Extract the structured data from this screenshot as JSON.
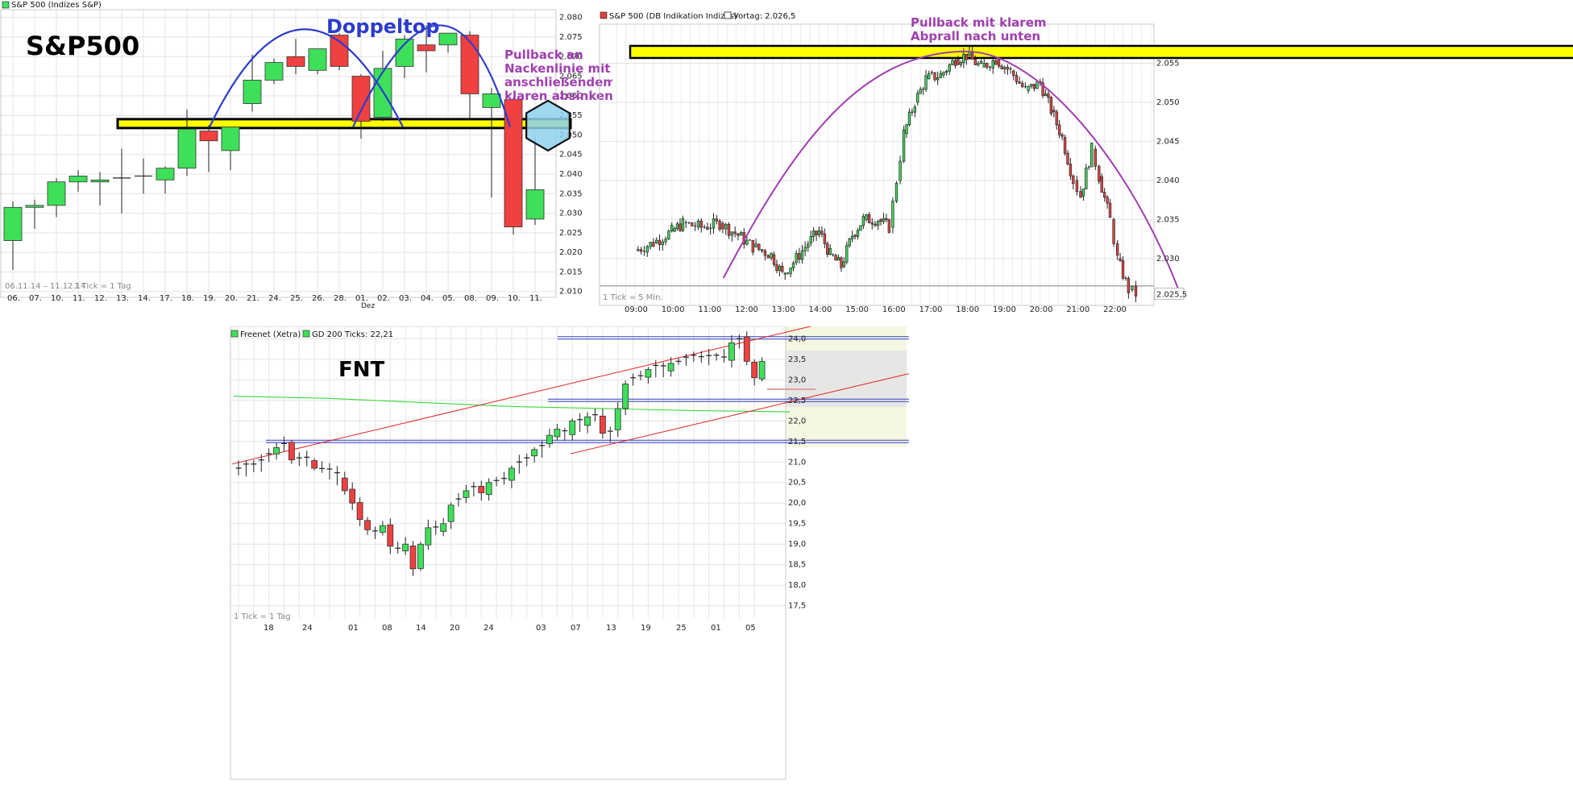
{
  "chart_data": [
    {
      "type": "candlestick",
      "id": "spx-daily",
      "header": "S&P 500 (Indizes S&P)",
      "title": "S&P500",
      "pattern_label": "Doppeltop",
      "annotation": "Pullback an Nackenlinie mit anschließendem klaren absinken",
      "footer_range": "06.11.14 – 11.12.14",
      "footer_tick": "1 Tick = 1 Tag",
      "month_label": "Dez",
      "x_labels": [
        "06.",
        "07.",
        "10.",
        "11.",
        "12.",
        "13.",
        "14.",
        "17.",
        "18.",
        "19.",
        "20.",
        "21.",
        "24.",
        "25.",
        "26.",
        "28.",
        "01.",
        "02.",
        "03.",
        "04.",
        "05.",
        "08.",
        "09.",
        "10.",
        "11."
      ],
      "y_ticks": [
        "2.080",
        "2.075",
        "2.070",
        "2.065",
        "2.060",
        "2.055",
        "2.050",
        "2.045",
        "2.040",
        "2.035",
        "2.030",
        "2.025",
        "2.020",
        "2.015",
        "2.010"
      ],
      "ylim": [
        2008.5,
        2082
      ],
      "neckline": 2053,
      "candles": [
        {
          "o": 2023.0,
          "h": 2033.0,
          "l": 2015.5,
          "c": 2031.5
        },
        {
          "o": 2031.5,
          "h": 2033.5,
          "l": 2026.0,
          "c": 2032.0
        },
        {
          "o": 2032.0,
          "h": 2039.0,
          "l": 2029.0,
          "c": 2038.0
        },
        {
          "o": 2038.0,
          "h": 2041.0,
          "l": 2035.5,
          "c": 2039.5
        },
        {
          "o": 2038.0,
          "h": 2040.5,
          "l": 2032.0,
          "c": 2038.5
        },
        {
          "o": 2039.0,
          "h": 2046.5,
          "l": 2030.0,
          "c": 2039.0
        },
        {
          "o": 2039.5,
          "h": 2044.0,
          "l": 2035.0,
          "c": 2039.5
        },
        {
          "o": 2038.5,
          "h": 2042.0,
          "l": 2035.0,
          "c": 2041.5
        },
        {
          "o": 2041.5,
          "h": 2056.5,
          "l": 2039.5,
          "c": 2051.5
        },
        {
          "o": 2051.0,
          "h": 2052.5,
          "l": 2040.5,
          "c": 2048.5
        },
        {
          "o": 2046.0,
          "h": 2052.0,
          "l": 2041.0,
          "c": 2052.0
        },
        {
          "o": 2058.0,
          "h": 2070.5,
          "l": 2056.0,
          "c": 2064.0
        },
        {
          "o": 2064.0,
          "h": 2069.5,
          "l": 2063.0,
          "c": 2068.5
        },
        {
          "o": 2070.0,
          "h": 2074.5,
          "l": 2065.5,
          "c": 2067.5
        },
        {
          "o": 2066.5,
          "h": 2072.0,
          "l": 2065.5,
          "c": 2072.0
        },
        {
          "o": 2075.5,
          "h": 2076.0,
          "l": 2066.5,
          "c": 2067.5
        },
        {
          "o": 2065.0,
          "h": 2065.5,
          "l": 2049.0,
          "c": 2053.5
        },
        {
          "o": 2054.5,
          "h": 2071.5,
          "l": 2053.5,
          "c": 2067.0
        },
        {
          "o": 2067.5,
          "h": 2075.5,
          "l": 2064.5,
          "c": 2074.5
        },
        {
          "o": 2073.0,
          "h": 2078.0,
          "l": 2066.0,
          "c": 2071.5
        },
        {
          "o": 2073.0,
          "h": 2076.0,
          "l": 2071.0,
          "c": 2076.0
        },
        {
          "o": 2075.5,
          "h": 2076.5,
          "l": 2054.0,
          "c": 2060.5
        },
        {
          "o": 2057.0,
          "h": 2062.0,
          "l": 2034.0,
          "c": 2060.5
        },
        {
          "o": 2059.0,
          "h": 2059.5,
          "l": 2024.5,
          "c": 2026.5
        },
        {
          "o": 2028.5,
          "h": 2049.5,
          "l": 2027.0,
          "c": 2036.0
        }
      ]
    },
    {
      "type": "candlestick",
      "id": "spx-intraday",
      "header": "S&P 500 (DB Indikation Indizes)",
      "prev_close_label": "Vortag: 2.026,5",
      "annotation": "Pullback mit klarem Abprall nach unten",
      "footer_tick": "1 Tick = 5 Min.",
      "x_labels": [
        "09:00",
        "10:00",
        "11:00",
        "12:00",
        "13:00",
        "14:00",
        "15:00",
        "16:00",
        "17:00",
        "18:00",
        "19:00",
        "20:00",
        "21:00",
        "22:00"
      ],
      "y_ticks": [
        "2.055",
        "2.050",
        "2.045",
        "2.040",
        "2.035",
        "2.030"
      ],
      "last_value_label": "2.025,5",
      "ylim": [
        2024.0,
        2060.0
      ],
      "resistance": 2056.5,
      "prev_close": 2026.5,
      "path": [
        [
          9.0,
          2031.0
        ],
        [
          9.5,
          2032.0
        ],
        [
          10.0,
          2033.5
        ],
        [
          10.3,
          2034.5
        ],
        [
          10.8,
          2034.0
        ],
        [
          11.3,
          2034.5
        ],
        [
          11.8,
          2033.0
        ],
        [
          12.2,
          2031.5
        ],
        [
          12.7,
          2030.5
        ],
        [
          13.0,
          2028.0
        ],
        [
          13.3,
          2029.5
        ],
        [
          13.7,
          2032.0
        ],
        [
          14.0,
          2033.5
        ],
        [
          14.3,
          2030.5
        ],
        [
          14.6,
          2029.0
        ],
        [
          14.9,
          2033.0
        ],
        [
          15.2,
          2035.0
        ],
        [
          15.6,
          2035.0
        ],
        [
          15.9,
          2034.0
        ],
        [
          16.1,
          2040.0
        ],
        [
          16.3,
          2046.0
        ],
        [
          16.6,
          2050.0
        ],
        [
          16.9,
          2053.0
        ],
        [
          17.3,
          2053.5
        ],
        [
          17.7,
          2055.5
        ],
        [
          18.0,
          2056.0
        ],
        [
          18.4,
          2054.5
        ],
        [
          18.8,
          2055.5
        ],
        [
          19.2,
          2054.0
        ],
        [
          19.6,
          2051.5
        ],
        [
          20.0,
          2052.5
        ],
        [
          20.3,
          2049.0
        ],
        [
          20.6,
          2045.5
        ],
        [
          20.9,
          2040.0
        ],
        [
          21.1,
          2038.0
        ],
        [
          21.4,
          2044.0
        ],
        [
          21.6,
          2040.5
        ],
        [
          21.9,
          2035.0
        ],
        [
          22.1,
          2030.0
        ],
        [
          22.4,
          2026.0
        ],
        [
          22.6,
          2025.5
        ]
      ],
      "arc": {
        "start": [
          11.4,
          2027.5
        ],
        "peak": [
          18.0,
          2056.5
        ],
        "end": [
          23.8,
          2025.5
        ]
      }
    },
    {
      "type": "candlestick",
      "id": "fnt-daily",
      "header_series": "Freenet (Xetra)",
      "header_ma": "GD 200 Ticks: 22,21",
      "title": "FNT",
      "footer_tick": "1 Tick = 1 Tag",
      "x_labels": [
        "18",
        "24",
        "01",
        "08",
        "14",
        "20",
        "24",
        "03",
        "07",
        "13",
        "19",
        "25",
        "01",
        "05"
      ],
      "y_ticks": [
        "24,0",
        "23,5",
        "23,0",
        "22,5",
        "22,0",
        "21,5",
        "21,0",
        "20,5",
        "20,0",
        "19,5",
        "19,0",
        "18,5",
        "18,0",
        "17,5"
      ],
      "ylim": [
        17.2,
        24.3
      ],
      "resistance_levels": [
        24.02,
        22.5,
        21.5
      ],
      "ma200": [
        22.6,
        22.55,
        22.45,
        22.35,
        22.3,
        22.25,
        22.22
      ],
      "closes": [
        20.85,
        20.95,
        20.95,
        21.05,
        21.2,
        21.35,
        21.45,
        21.05,
        21.1,
        21.0,
        20.85,
        20.8,
        20.75,
        20.6,
        20.3,
        20.0,
        19.6,
        19.35,
        19.25,
        19.45,
        18.95,
        18.85,
        19.0,
        18.4,
        19.0,
        19.4,
        19.35,
        19.5,
        19.95,
        20.1,
        20.3,
        20.4,
        20.25,
        20.5,
        20.55,
        20.6,
        20.85,
        21.0,
        21.1,
        21.3,
        21.4,
        21.65,
        21.8,
        21.7,
        22.0,
        21.9,
        22.1,
        22.15,
        21.7,
        21.75,
        22.3,
        22.9,
        23.05,
        23.1,
        23.25,
        23.35,
        23.25,
        23.4,
        23.45,
        23.55,
        23.6,
        23.55,
        23.55,
        23.6,
        23.5,
        23.9,
        24.0,
        23.45,
        23.05,
        23.45
      ]
    }
  ],
  "colors": {
    "up": "#3ee05a",
    "down": "#f04040",
    "highlight": "#ffff00",
    "pattern_line": "#2b3ccc",
    "annotation_text": "#a040b0",
    "arc": "#a040b0",
    "hexagon_fill": "#8fd0ee",
    "channel": "#e02020",
    "ma": "#3cd83c",
    "resistance": "#3040c0"
  }
}
